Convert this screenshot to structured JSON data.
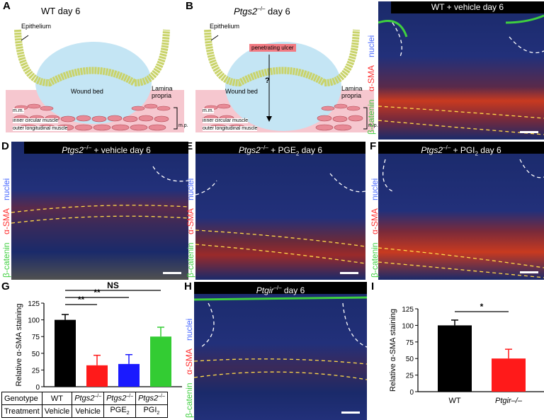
{
  "panels": {
    "A": {
      "letter": "A",
      "title": "WT day 6",
      "epithelium": "Epithelium",
      "wound_bed": "Wound bed",
      "lamina_propria": "Lamina propria",
      "mm": "m.m.",
      "inner": "inner circular muscle",
      "outer": "outer longitudinal muscle",
      "mp": "m.p."
    },
    "B": {
      "letter": "B",
      "title": "Ptgs2",
      "title_sup": "–/–",
      "title_rest": " day 6",
      "epithelium": "Epithelium",
      "ulcer": "penetrating ulcer",
      "question": "?",
      "wound_bed": "Wound bed",
      "lamina_propria": "Lamina propria",
      "mm": "m.m.",
      "inner": "inner circular muscle",
      "outer": "outer longitudinal muscle",
      "mp": "m.p."
    },
    "C": {
      "letter": "C",
      "title": "WT + vehicle day 6"
    },
    "D": {
      "letter": "D",
      "title_italic": "Ptgs2",
      "title_sup": "–/–",
      "title_rest": " + vehicle day 6"
    },
    "E": {
      "letter": "E",
      "title_italic": "Ptgs2",
      "title_sup": "–/–",
      "title_rest": " + PGE",
      "title_sub": "2",
      "title_end": " day 6"
    },
    "F": {
      "letter": "F",
      "title_italic": "Ptgs2",
      "title_sup": "–/–",
      "title_rest": " + PGI",
      "title_sub": "2",
      "title_end": " day 6"
    },
    "H": {
      "letter": "H",
      "title_italic": "Ptgir",
      "title_sup": "–/–",
      "title_rest": " day 6"
    },
    "G": {
      "letter": "G"
    },
    "I": {
      "letter": "I"
    }
  },
  "stain_labels": {
    "nuclei": "nuclei",
    "sma": "α-SMA",
    "catenin": "β-catenin"
  },
  "colors": {
    "black": "#000000",
    "red": "#ff1a1a",
    "blue": "#1a1aff",
    "green": "#33cc33",
    "epithelium": "#c9d36a",
    "wound": "#bfe3f2",
    "muscle": "#f2b0b8"
  },
  "chart_data": [
    {
      "type": "bar",
      "panel": "G",
      "ylabel": "Relative α-SMA staining",
      "ylim": [
        0,
        125
      ],
      "yticks": [
        "0",
        "25",
        "50",
        "75",
        "100",
        "125"
      ],
      "bars": [
        {
          "value": 100,
          "error": 8,
          "color": "#000000"
        },
        {
          "value": 32,
          "error": 15,
          "color": "#ff1a1a"
        },
        {
          "value": 34,
          "error": 14,
          "color": "#1a1aff"
        },
        {
          "value": 75,
          "error": 14,
          "color": "#33cc33"
        }
      ],
      "significance": [
        {
          "label": "NS",
          "from": 0,
          "to": 3
        },
        {
          "label": "**",
          "from": 0,
          "to": 2
        },
        {
          "label": "**",
          "from": 0,
          "to": 1
        }
      ],
      "table": {
        "genotype_label": "Genotype",
        "treatment_label": "Treatment",
        "genotype": [
          "WT",
          "Ptgs2–/–",
          "Ptgs2–/–",
          "Ptgs2–/–"
        ],
        "treatment": [
          "Vehicle",
          "Vehicle",
          "PGE2",
          "PGI2"
        ]
      }
    },
    {
      "type": "bar",
      "panel": "I",
      "ylabel": "Relative α-SMA staining",
      "ylim": [
        0,
        125
      ],
      "yticks": [
        "0",
        "25",
        "50",
        "75",
        "100",
        "125"
      ],
      "categories": [
        "WT",
        "Ptgir–/–"
      ],
      "bars": [
        {
          "value": 100,
          "error": 8,
          "color": "#000000"
        },
        {
          "value": 50,
          "error": 14,
          "color": "#ff1a1a"
        }
      ],
      "significance": [
        {
          "label": "*",
          "from": 0,
          "to": 1
        }
      ]
    }
  ]
}
